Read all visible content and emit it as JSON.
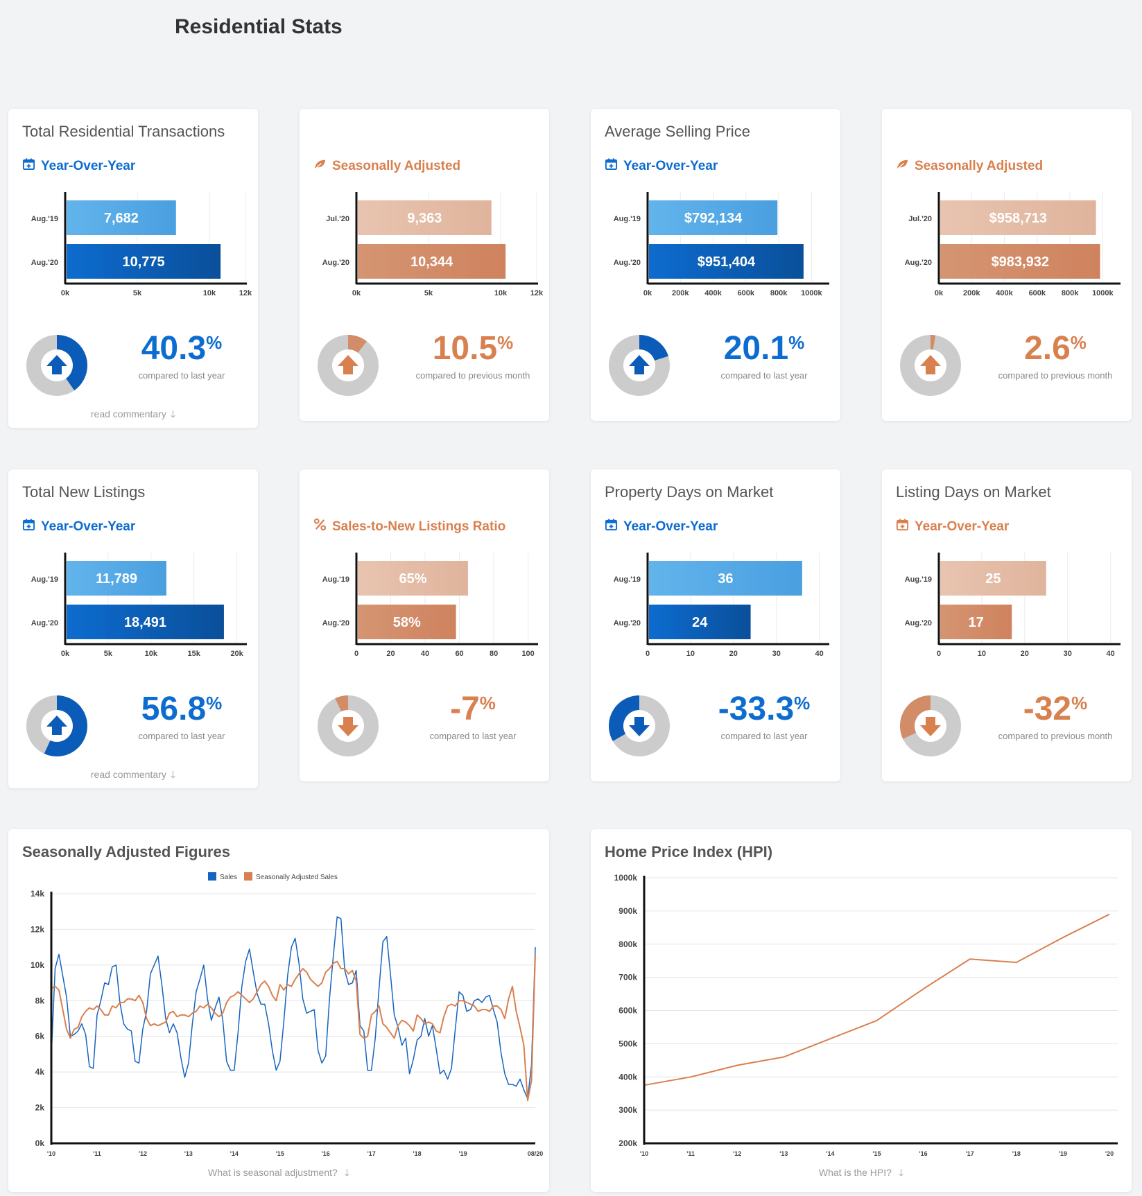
{
  "page": {
    "title": "Residential Stats"
  },
  "colors": {
    "blue_light": "#5aaee8",
    "blue_dark": "#0b5cb8",
    "orange_light": "#e5bca6",
    "orange_dark": "#d28c68",
    "donut_bg": "#cccccc",
    "blue_text": "#0d6ccf",
    "orange_text": "#d9804f"
  },
  "cards": [
    {
      "title": "Total Residential Transactions",
      "subtitle": "Year-Over-Year",
      "subtitle_icon": "calendar-icon",
      "theme": "blue",
      "percent": "40.3",
      "percent_sign": "%",
      "direction": "up",
      "donut_fraction": 0.403,
      "compare": "compared to last year",
      "read_commentary": "read commentary",
      "chart_data": {
        "type": "bar",
        "orientation": "horizontal",
        "categories": [
          "Aug.'19",
          "Aug.'20"
        ],
        "values": [
          7682,
          10775
        ],
        "value_labels": [
          "7,682",
          "10,775"
        ],
        "xlim": [
          0,
          12500
        ],
        "ticks": [
          0,
          5000,
          10000,
          12500
        ],
        "tick_labels": [
          "0k",
          "5k",
          "10k",
          "12k"
        ]
      }
    },
    {
      "title": "",
      "subtitle": "Seasonally Adjusted",
      "subtitle_icon": "leaf-icon",
      "theme": "orange",
      "percent": "10.5",
      "percent_sign": "%",
      "direction": "up",
      "donut_fraction": 0.105,
      "compare": "compared to previous month",
      "read_commentary": "",
      "chart_data": {
        "type": "bar",
        "orientation": "horizontal",
        "categories": [
          "Jul.'20",
          "Aug.'20"
        ],
        "values": [
          9363,
          10344
        ],
        "value_labels": [
          "9,363",
          "10,344"
        ],
        "xlim": [
          0,
          12500
        ],
        "ticks": [
          0,
          5000,
          10000,
          12500
        ],
        "tick_labels": [
          "0k",
          "5k",
          "10k",
          "12k"
        ]
      }
    },
    {
      "title": "Average Selling Price",
      "subtitle": "Year-Over-Year",
      "subtitle_icon": "calendar-icon",
      "theme": "blue",
      "percent": "20.1",
      "percent_sign": "%",
      "direction": "up",
      "donut_fraction": 0.201,
      "compare": "compared to last year",
      "read_commentary": "",
      "chart_data": {
        "type": "bar",
        "orientation": "horizontal",
        "categories": [
          "Aug.'19",
          "Aug.'20"
        ],
        "values": [
          792134,
          951404
        ],
        "value_labels": [
          "$792,134",
          "$951,404"
        ],
        "xlim": [
          0,
          1100000
        ],
        "ticks": [
          0,
          200000,
          400000,
          600000,
          800000,
          1000000
        ],
        "tick_labels": [
          "0k",
          "200k",
          "400k",
          "600k",
          "800k",
          "1000k"
        ]
      }
    },
    {
      "title": "",
      "subtitle": "Seasonally Adjusted",
      "subtitle_icon": "leaf-icon",
      "theme": "orange",
      "percent": "2.6",
      "percent_sign": "%",
      "direction": "up",
      "donut_fraction": 0.026,
      "compare": "compared to previous month",
      "read_commentary": "",
      "chart_data": {
        "type": "bar",
        "orientation": "horizontal",
        "categories": [
          "Jul.'20",
          "Aug.'20"
        ],
        "values": [
          958713,
          983932
        ],
        "value_labels": [
          "$958,713",
          "$983,932"
        ],
        "xlim": [
          0,
          1100000
        ],
        "ticks": [
          0,
          200000,
          400000,
          600000,
          800000,
          1000000
        ],
        "tick_labels": [
          "0k",
          "200k",
          "400k",
          "600k",
          "800k",
          "1000k"
        ]
      }
    },
    {
      "title": "Total New Listings",
      "subtitle": "Year-Over-Year",
      "subtitle_icon": "calendar-icon",
      "theme": "blue",
      "percent": "56.8",
      "percent_sign": "%",
      "direction": "up",
      "donut_fraction": 0.568,
      "compare": "compared to last year",
      "read_commentary": "read commentary",
      "chart_data": {
        "type": "bar",
        "orientation": "horizontal",
        "categories": [
          "Aug.'19",
          "Aug.'20"
        ],
        "values": [
          11789,
          18491
        ],
        "value_labels": [
          "11,789",
          "18,491"
        ],
        "xlim": [
          0,
          21000
        ],
        "ticks": [
          0,
          5000,
          10000,
          15000,
          20000
        ],
        "tick_labels": [
          "0k",
          "5k",
          "10k",
          "15k",
          "20k"
        ]
      }
    },
    {
      "title": "",
      "subtitle": "Sales-to-New Listings Ratio",
      "subtitle_icon": "percent-icon",
      "theme": "orange",
      "percent": "-7",
      "percent_sign": "%",
      "direction": "down",
      "donut_fraction": 0.07,
      "compare": "compared to last year",
      "read_commentary": "",
      "chart_data": {
        "type": "bar",
        "orientation": "horizontal",
        "categories": [
          "Aug.'19",
          "Aug.'20"
        ],
        "values": [
          65,
          58
        ],
        "value_labels": [
          "65%",
          "58%"
        ],
        "xlim": [
          0,
          105
        ],
        "ticks": [
          0,
          20,
          40,
          60,
          80,
          100
        ],
        "tick_labels": [
          "0",
          "20",
          "40",
          "60",
          "80",
          "100"
        ]
      }
    },
    {
      "title": "Property Days on Market",
      "subtitle": "Year-Over-Year",
      "subtitle_icon": "calendar-icon",
      "theme": "blue",
      "percent": "-33.3",
      "percent_sign": "%",
      "direction": "down",
      "donut_fraction": 0.333,
      "compare": "compared to last year",
      "read_commentary": "",
      "chart_data": {
        "type": "bar",
        "orientation": "horizontal",
        "categories": [
          "Aug.'19",
          "Aug.'20"
        ],
        "values": [
          36,
          24
        ],
        "value_labels": [
          "36",
          "24"
        ],
        "xlim": [
          0,
          42
        ],
        "ticks": [
          0,
          10,
          20,
          30,
          40
        ],
        "tick_labels": [
          "0",
          "10",
          "20",
          "30",
          "40"
        ]
      }
    },
    {
      "title": "Listing Days on Market",
      "subtitle": "Year-Over-Year",
      "subtitle_icon": "calendar-icon",
      "theme": "orange",
      "percent": "-32",
      "percent_sign": "%",
      "direction": "down",
      "donut_fraction": 0.32,
      "compare": "compared to previous month",
      "read_commentary": "",
      "chart_data": {
        "type": "bar",
        "orientation": "horizontal",
        "categories": [
          "Aug.'19",
          "Aug.'20"
        ],
        "values": [
          25,
          17
        ],
        "value_labels": [
          "25",
          "17"
        ],
        "xlim": [
          0,
          42
        ],
        "ticks": [
          0,
          10,
          20,
          30,
          40
        ],
        "tick_labels": [
          "0",
          "10",
          "20",
          "30",
          "40"
        ]
      }
    }
  ],
  "seasonal": {
    "title": "Seasonally Adjusted Figures",
    "footer": "What is seasonal adjustment?",
    "chart_data": {
      "type": "line",
      "legend_position": "top",
      "ylim": [
        0,
        14000
      ],
      "y_ticks": [
        0,
        2000,
        4000,
        6000,
        8000,
        10000,
        12000,
        14000
      ],
      "y_tick_labels": [
        "0k",
        "2k",
        "4k",
        "6k",
        "8k",
        "10k",
        "12k",
        "14k"
      ],
      "xlim": [
        0,
        127
      ],
      "x_ticks": [
        0,
        12,
        24,
        36,
        48,
        60,
        72,
        84,
        96,
        108,
        127
      ],
      "x_tick_labels": [
        "'10",
        "'11",
        "'12",
        "'13",
        "'14",
        "'15",
        "'16",
        "'17",
        "'18",
        "'19",
        "08/20"
      ],
      "series": [
        {
          "name": "Sales",
          "color": "#1565c0",
          "values": [
            4900,
            9800,
            10600,
            9400,
            8200,
            6000,
            6100,
            6300,
            6700,
            6100,
            4300,
            4200,
            7200,
            8000,
            9000,
            8900,
            9900,
            10000,
            7900,
            6700,
            6400,
            6300,
            4600,
            4500,
            6400,
            7400,
            9500,
            10000,
            10500,
            8900,
            7000,
            6200,
            6700,
            6200,
            4800,
            3700,
            4500,
            6700,
            8500,
            9200,
            10000,
            8100,
            6900,
            7600,
            8200,
            6900,
            4600,
            4100,
            4100,
            6200,
            8800,
            10200,
            10900,
            9600,
            8400,
            7800,
            7800,
            6700,
            5200,
            4100,
            4600,
            6800,
            9400,
            11000,
            11500,
            10100,
            8100,
            7300,
            7400,
            7500,
            5200,
            4500,
            4900,
            8100,
            10500,
            12700,
            12600,
            9700,
            8900,
            9000,
            9700,
            6600,
            6300,
            4100,
            4100,
            5900,
            8700,
            11300,
            11600,
            9500,
            7200,
            6500,
            5500,
            5900,
            3900,
            4700,
            5800,
            6000,
            7000,
            6000,
            6600,
            5300,
            3900,
            4100,
            3600,
            4200,
            6400,
            8500,
            8300,
            7400,
            7500,
            8000,
            8100,
            7900,
            8200,
            8300,
            7500,
            6800,
            5100,
            3900,
            3300,
            3300,
            3200,
            3600,
            3000,
            2500,
            4400,
            11000
          ]
        },
        {
          "name": "Seasonally Adjusted Sales",
          "color": "#d9804f",
          "values": [
            8700,
            8800,
            8600,
            7500,
            6400,
            5900,
            6400,
            6500,
            7100,
            7400,
            7600,
            7500,
            7700,
            7500,
            7200,
            7200,
            7700,
            7600,
            7900,
            7900,
            8100,
            8100,
            8000,
            8300,
            7900,
            7000,
            6600,
            6700,
            6600,
            6700,
            6800,
            7300,
            7400,
            7100,
            7200,
            7200,
            7100,
            7300,
            7400,
            7700,
            7600,
            7800,
            7600,
            7300,
            7100,
            7300,
            7900,
            8200,
            8300,
            8500,
            8300,
            8100,
            7900,
            8100,
            8500,
            8900,
            9100,
            8800,
            8300,
            8000,
            8900,
            8600,
            8900,
            8800,
            9200,
            9500,
            9800,
            9600,
            9200,
            9000,
            8800,
            9000,
            9600,
            9800,
            10100,
            10200,
            9800,
            9800,
            9500,
            9700,
            9100,
            6100,
            5900,
            6000,
            7200,
            7400,
            7700,
            6700,
            6500,
            6200,
            5900,
            6600,
            6900,
            6800,
            6600,
            6300,
            7200,
            7000,
            6700,
            6800,
            6700,
            6300,
            6200,
            7100,
            7700,
            7800,
            7700,
            8000,
            8000,
            7900,
            7800,
            7700,
            7400,
            7500,
            7500,
            7400,
            7700,
            7700,
            7500,
            7000,
            8100,
            8800,
            7400,
            6500,
            5500,
            2400,
            3500,
            10600
          ]
        }
      ]
    }
  },
  "hpi": {
    "title": "Home Price Index (HPI)",
    "footer": "What is the HPI?",
    "chart_data": {
      "type": "line",
      "ylim": [
        200000,
        1000000
      ],
      "y_ticks": [
        200000,
        300000,
        400000,
        500000,
        600000,
        700000,
        800000,
        900000,
        1000000
      ],
      "y_tick_labels": [
        "200k",
        "300k",
        "400k",
        "500k",
        "600k",
        "700k",
        "800k",
        "900k",
        "1000k"
      ],
      "x": [
        2010,
        2011,
        2012,
        2013,
        2014,
        2015,
        2016,
        2017,
        2018,
        2019,
        2020
      ],
      "x_tick_labels": [
        "'10",
        "'11",
        "'12",
        "'13",
        "'14",
        "'15",
        "'16",
        "'17",
        "'18",
        "'19",
        "'20"
      ],
      "series": [
        {
          "name": "",
          "color": "#d9804f",
          "values": [
            375000,
            400000,
            435000,
            460000,
            515000,
            570000,
            665000,
            755000,
            745000,
            820000,
            890000
          ]
        }
      ]
    }
  }
}
